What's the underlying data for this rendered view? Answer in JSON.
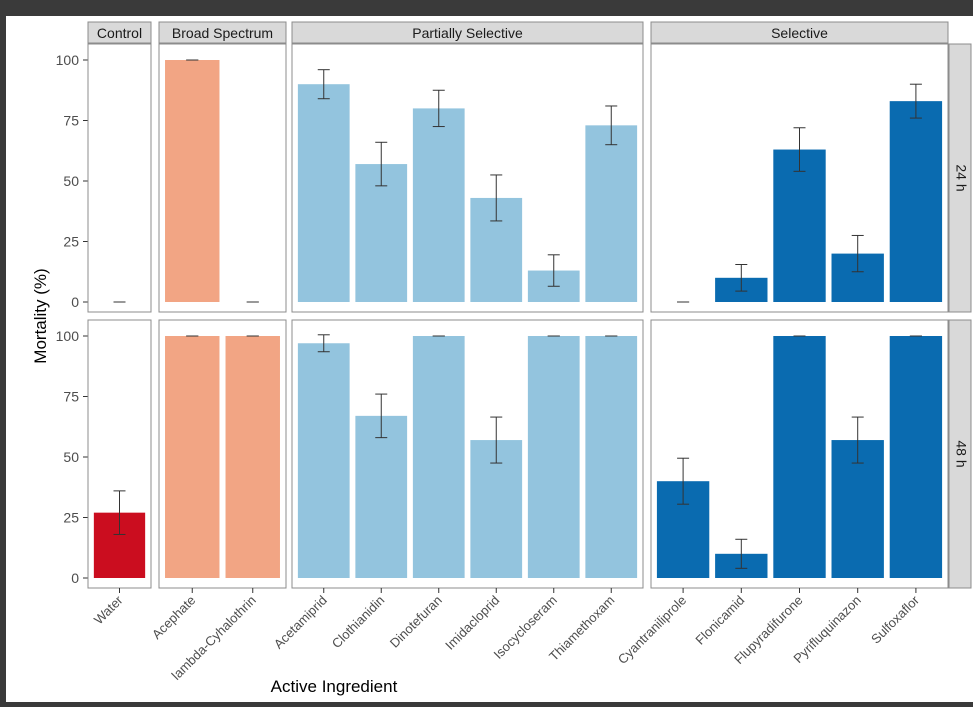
{
  "chart_data": {
    "type": "bar",
    "ylabel": "Mortality (%)",
    "xlabel": "Active Ingredient",
    "ylim": [
      0,
      100
    ],
    "yticks": [
      0,
      25,
      50,
      75,
      100
    ],
    "grid": false,
    "groups": [
      {
        "name": "Control",
        "color": "#CB0D1F",
        "categories": [
          "Water"
        ]
      },
      {
        "name": "Broad Spectrum",
        "color": "#F2A584",
        "categories": [
          "Acephate",
          "lambda-Cyhalothrin"
        ]
      },
      {
        "name": "Partially Selective",
        "color": "#93C4DE",
        "categories": [
          "Acetamiprid",
          "Clothianidin",
          "Dinotefuran",
          "Imidacloprid",
          "Isocycloseram",
          "Thiamethoxam"
        ]
      },
      {
        "name": "Selective",
        "color": "#0A6BB0",
        "categories": [
          "Cyantraniliprole",
          "Flonicamid",
          "Flupyradifurone",
          "Pyrifluquinazon",
          "Sulfoxaflor"
        ]
      }
    ],
    "panels": [
      {
        "name": "24 h",
        "values": {
          "Water": 0,
          "Acephate": 100,
          "lambda-Cyhalothrin": 0,
          "Acetamiprid": 90,
          "Clothianidin": 57,
          "Dinotefuran": 80,
          "Imidacloprid": 43,
          "Isocycloseram": 13,
          "Thiamethoxam": 73,
          "Cyantraniliprole": 0,
          "Flonicamid": 10,
          "Flupyradifurone": 63,
          "Pyrifluquinazon": 20,
          "Sulfoxaflor": 83
        },
        "errors": {
          "Water": 0,
          "Acephate": 0,
          "lambda-Cyhalothrin": 0,
          "Acetamiprid": 6,
          "Clothianidin": 9,
          "Dinotefuran": 7.5,
          "Imidacloprid": 9.5,
          "Isocycloseram": 6.5,
          "Thiamethoxam": 8,
          "Cyantraniliprole": 0,
          "Flonicamid": 5.5,
          "Flupyradifurone": 9,
          "Pyrifluquinazon": 7.5,
          "Sulfoxaflor": 7
        }
      },
      {
        "name": "48 h",
        "values": {
          "Water": 27,
          "Acephate": 100,
          "lambda-Cyhalothrin": 100,
          "Acetamiprid": 97,
          "Clothianidin": 67,
          "Dinotefuran": 100,
          "Imidacloprid": 57,
          "Isocycloseram": 100,
          "Thiamethoxam": 100,
          "Cyantraniliprole": 40,
          "Flonicamid": 10,
          "Flupyradifurone": 100,
          "Pyrifluquinazon": 57,
          "Sulfoxaflor": 100
        },
        "errors": {
          "Water": 9,
          "Acephate": 0,
          "lambda-Cyhalothrin": 0,
          "Acetamiprid": 3.5,
          "Clothianidin": 9,
          "Dinotefuran": 0,
          "Imidacloprid": 9.5,
          "Isocycloseram": 0,
          "Thiamethoxam": 0,
          "Cyantraniliprole": 9.5,
          "Flonicamid": 6,
          "Flupyradifurone": 0,
          "Pyrifluquinazon": 9.5,
          "Sulfoxaflor": 0
        }
      }
    ]
  }
}
